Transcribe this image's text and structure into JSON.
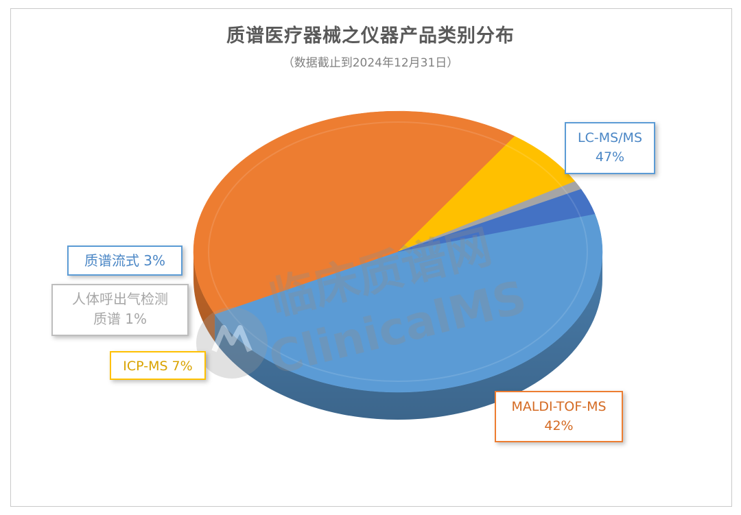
{
  "chart_data": {
    "type": "pie",
    "title": "质谱医疗器械之仪器产品类别分布",
    "subtitle": "（数据截止到2024年12月31日）",
    "slices": [
      {
        "label": "LC-MS/MS",
        "value": 47,
        "value_text": "47%",
        "color": "#5b9bd5"
      },
      {
        "label": "MALDI-TOF-MS",
        "value": 42,
        "value_text": "42%",
        "color": "#ed7d31"
      },
      {
        "label": "ICP-MS",
        "value": 7,
        "value_text": "7%",
        "color": "#ffc000"
      },
      {
        "label": "人体呼出气检测质谱",
        "value": 1,
        "value_text": "1%",
        "color": "#a5a5a5"
      },
      {
        "label": "质谱流式",
        "value": 3,
        "value_text": "3%",
        "color": "#4472c4"
      }
    ],
    "legend": "none",
    "style": "3d"
  },
  "labels": {
    "lcms_name": "LC-MS/MS",
    "lcms_pct": "47%",
    "maldi_name": "MALDI-TOF-MS",
    "maldi_pct": "42%",
    "icp_text": "ICP-MS  7%",
    "breath_line1": "人体呼出气检测",
    "breath_line2": "质谱  1%",
    "flow_text": "质谱流式  3%"
  },
  "watermark": {
    "text_cn": "临床质谱网",
    "text_en": "ClinicalMS"
  }
}
